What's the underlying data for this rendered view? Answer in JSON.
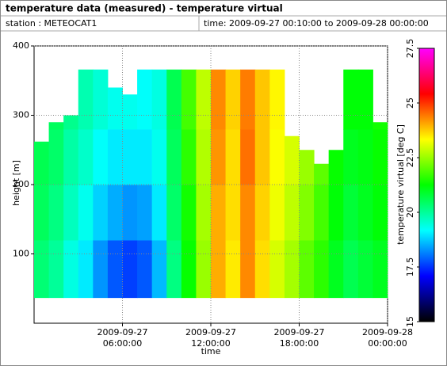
{
  "chart_data": {
    "type": "heatmap",
    "title": "temperature data (measured) - temperature virtual",
    "station": "station : METEOCAT1",
    "time_range": "time: 2009-09-27 00:10:00 to 2009-09-28 00:00:00",
    "x_label": "time",
    "y_label": "height [m]",
    "colorbar_label": "temperature virtual [deg C]",
    "x_edges": [
      0,
      1,
      2,
      3,
      4,
      5,
      6,
      7,
      8,
      9,
      10,
      11,
      12,
      13,
      14,
      15,
      16,
      17,
      18,
      19,
      20,
      21,
      22,
      23,
      24
    ],
    "y_edges": [
      37,
      120,
      200,
      280,
      366
    ],
    "tops": [
      262,
      290,
      300,
      366,
      366,
      340,
      330,
      366,
      366,
      366,
      366,
      366,
      366,
      366,
      366,
      366,
      366,
      270,
      250,
      230,
      250,
      366,
      366,
      290
    ],
    "values": [
      [
        20.3,
        20.5,
        20.6,
        null
      ],
      [
        20,
        20.2,
        20.4,
        20.5
      ],
      [
        19.4,
        19.7,
        19.9,
        20.1
      ],
      [
        19,
        19.3,
        19.6,
        19.8
      ],
      [
        18.3,
        18.8,
        19.2,
        19.5
      ],
      [
        17.8,
        18.5,
        19,
        19.3
      ],
      [
        17.6,
        18.3,
        19,
        19.3
      ],
      [
        17.8,
        18.4,
        19,
        19.2
      ],
      [
        18.6,
        19,
        19.3,
        19.4
      ],
      [
        20.2,
        20.4,
        20.5,
        20.6
      ],
      [
        21.3,
        21.4,
        21.6,
        21.8
      ],
      [
        22.5,
        22.6,
        22.7,
        22.8
      ],
      [
        24,
        24,
        24.2,
        24.3
      ],
      [
        23.5,
        23.6,
        23.6,
        23.7
      ],
      [
        24.3,
        24.3,
        24.5,
        24.4
      ],
      [
        23.6,
        23.7,
        23.8,
        23.8
      ],
      [
        23,
        23.2,
        23.3,
        23.4
      ],
      [
        22.6,
        22.8,
        23,
        null
      ],
      [
        22,
        22.3,
        22.5,
        null
      ],
      [
        21.6,
        21.8,
        22,
        null
      ],
      [
        21,
        21.2,
        21.3,
        null
      ],
      [
        20.6,
        20.8,
        21,
        21.2
      ],
      [
        20.8,
        21,
        21.1,
        21.2
      ],
      [
        21,
        21.2,
        21.3,
        21.4
      ]
    ],
    "xlim": [
      0,
      24
    ],
    "xticks": [
      {
        "value": 6,
        "label": "2009-09-27 06:00:00"
      },
      {
        "value": 12,
        "label": "2009-09-27 12:00:00"
      },
      {
        "value": 18,
        "label": "2009-09-27 18:00:00"
      },
      {
        "value": 24,
        "label": "2009-09-28 00:00:00"
      }
    ],
    "ylim": [
      0,
      400
    ],
    "yticks": [
      100,
      200,
      300,
      400
    ],
    "zlim": [
      15,
      27.5
    ],
    "zticks": [
      15,
      17.5,
      20,
      22.5,
      25,
      27.5
    ],
    "colormap": [
      "#000000",
      "#0000ff",
      "#00ffff",
      "#00ff00",
      "#ffff00",
      "#ff0000",
      "#ff00ff"
    ],
    "grid": true
  }
}
